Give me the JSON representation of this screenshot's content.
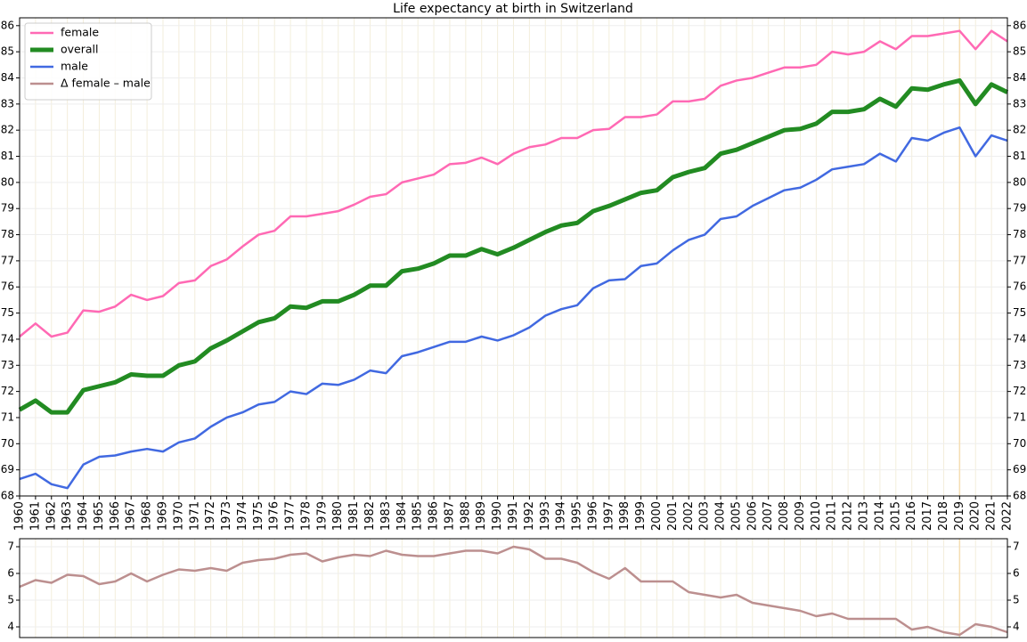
{
  "chart_data": [
    {
      "type": "line",
      "title": "Life expectancy at birth in Switzerland",
      "x": [
        1960,
        1961,
        1962,
        1963,
        1964,
        1965,
        1966,
        1967,
        1968,
        1969,
        1970,
        1971,
        1972,
        1973,
        1974,
        1975,
        1976,
        1977,
        1978,
        1979,
        1980,
        1981,
        1982,
        1983,
        1984,
        1985,
        1986,
        1987,
        1988,
        1989,
        1990,
        1991,
        1992,
        1993,
        1994,
        1995,
        1996,
        1997,
        1998,
        1999,
        2000,
        2001,
        2002,
        2003,
        2004,
        2005,
        2006,
        2007,
        2008,
        2009,
        2010,
        2011,
        2012,
        2013,
        2014,
        2015,
        2016,
        2017,
        2018,
        2019,
        2020,
        2021,
        2022
      ],
      "series": [
        {
          "name": "female",
          "color": "#ff69b4",
          "width": 2.5,
          "values": [
            74.1,
            74.6,
            74.1,
            74.25,
            75.1,
            75.05,
            75.25,
            75.7,
            75.5,
            75.65,
            76.15,
            76.25,
            76.8,
            77.05,
            77.55,
            78.0,
            78.15,
            78.7,
            78.7,
            78.8,
            78.9,
            79.15,
            79.45,
            79.55,
            80.0,
            80.15,
            80.3,
            80.7,
            80.75,
            80.95,
            80.7,
            81.1,
            81.35,
            81.45,
            81.7,
            81.7,
            82.0,
            82.05,
            82.5,
            82.5,
            82.6,
            83.1,
            83.1,
            83.2,
            83.7,
            83.9,
            84.0,
            84.2,
            84.4,
            84.4,
            84.5,
            85.0,
            84.9,
            85.0,
            85.4,
            85.1,
            85.6,
            85.6,
            85.7,
            85.8,
            85.1,
            85.8,
            85.4
          ]
        },
        {
          "name": "overall",
          "color": "#228b22",
          "width": 5,
          "values": [
            71.3,
            71.65,
            71.2,
            71.2,
            72.05,
            72.2,
            72.35,
            72.65,
            72.6,
            72.6,
            73.0,
            73.15,
            73.65,
            73.95,
            74.3,
            74.65,
            74.8,
            75.25,
            75.2,
            75.45,
            75.45,
            75.7,
            76.05,
            76.05,
            76.6,
            76.7,
            76.9,
            77.2,
            77.2,
            77.45,
            77.25,
            77.5,
            77.8,
            78.1,
            78.35,
            78.45,
            78.9,
            79.1,
            79.35,
            79.6,
            79.7,
            80.2,
            80.4,
            80.55,
            81.1,
            81.25,
            81.5,
            81.75,
            82.0,
            82.05,
            82.25,
            82.7,
            82.7,
            82.8,
            83.2,
            82.9,
            83.6,
            83.55,
            83.75,
            83.9,
            83.0,
            83.75,
            83.45
          ]
        },
        {
          "name": "male",
          "color": "#4169e1",
          "width": 2.5,
          "values": [
            68.65,
            68.85,
            68.45,
            68.3,
            69.2,
            69.5,
            69.55,
            69.7,
            69.8,
            69.7,
            70.05,
            70.2,
            70.65,
            71.0,
            71.2,
            71.5,
            71.6,
            72.0,
            71.9,
            72.3,
            72.25,
            72.45,
            72.8,
            72.7,
            73.35,
            73.5,
            73.7,
            73.9,
            73.9,
            74.1,
            73.95,
            74.15,
            74.45,
            74.9,
            75.15,
            75.3,
            75.95,
            76.25,
            76.3,
            76.8,
            76.9,
            77.4,
            77.8,
            78.0,
            78.6,
            78.7,
            79.1,
            79.4,
            79.7,
            79.8,
            80.1,
            80.5,
            80.6,
            80.7,
            81.1,
            80.8,
            81.7,
            81.6,
            81.9,
            82.1,
            81.0,
            81.8,
            81.6
          ]
        }
      ],
      "xlim": [
        1960,
        2022
      ],
      "xticks": [
        1960,
        1961,
        1962,
        1963,
        1964,
        1965,
        1966,
        1967,
        1968,
        1969,
        1970,
        1971,
        1972,
        1973,
        1974,
        1975,
        1976,
        1977,
        1978,
        1979,
        1980,
        1981,
        1982,
        1983,
        1984,
        1985,
        1986,
        1987,
        1988,
        1989,
        1990,
        1991,
        1992,
        1993,
        1994,
        1995,
        1996,
        1997,
        1998,
        1999,
        2000,
        2001,
        2002,
        2003,
        2004,
        2005,
        2006,
        2007,
        2008,
        2009,
        2010,
        2011,
        2012,
        2013,
        2014,
        2015,
        2016,
        2017,
        2018,
        2019,
        2020,
        2021,
        2022
      ],
      "ylim": [
        68,
        86.3
      ],
      "yticks": [
        68,
        69,
        70,
        71,
        72,
        73,
        74,
        75,
        76,
        77,
        78,
        79,
        80,
        81,
        82,
        83,
        84,
        85,
        86
      ],
      "grid": true,
      "highlight_x": 2019,
      "highlight_color": "#f5deb3",
      "legend": "upper left"
    },
    {
      "type": "line",
      "x": [
        1960,
        1961,
        1962,
        1963,
        1964,
        1965,
        1966,
        1967,
        1968,
        1969,
        1970,
        1971,
        1972,
        1973,
        1974,
        1975,
        1976,
        1977,
        1978,
        1979,
        1980,
        1981,
        1982,
        1983,
        1984,
        1985,
        1986,
        1987,
        1988,
        1989,
        1990,
        1991,
        1992,
        1993,
        1994,
        1995,
        1996,
        1997,
        1998,
        1999,
        2000,
        2001,
        2002,
        2003,
        2004,
        2005,
        2006,
        2007,
        2008,
        2009,
        2010,
        2011,
        2012,
        2013,
        2014,
        2015,
        2016,
        2017,
        2018,
        2019,
        2020,
        2021,
        2022
      ],
      "series": [
        {
          "name": "Δ female – male",
          "color": "#bc8f8f",
          "width": 2.5,
          "values": [
            5.5,
            5.75,
            5.65,
            5.95,
            5.9,
            5.6,
            5.7,
            6.0,
            5.7,
            5.95,
            6.15,
            6.1,
            6.2,
            6.1,
            6.4,
            6.5,
            6.55,
            6.7,
            6.75,
            6.45,
            6.6,
            6.7,
            6.65,
            6.85,
            6.7,
            6.65,
            6.65,
            6.75,
            6.85,
            6.85,
            6.75,
            7.0,
            6.9,
            6.55,
            6.55,
            6.4,
            6.05,
            5.8,
            6.2,
            5.7,
            5.7,
            5.7,
            5.3,
            5.2,
            5.1,
            5.2,
            4.9,
            4.8,
            4.7,
            4.6,
            4.4,
            4.5,
            4.3,
            4.3,
            4.3,
            4.3,
            3.9,
            4.0,
            3.8,
            3.7,
            4.1,
            4.0,
            3.8
          ]
        }
      ],
      "xlim": [
        1960,
        2022
      ],
      "ylim": [
        3.6,
        7.3
      ],
      "yticks": [
        4,
        5,
        6,
        7
      ],
      "grid": true,
      "highlight_x": 2019,
      "highlight_color": "#f5deb3"
    }
  ]
}
